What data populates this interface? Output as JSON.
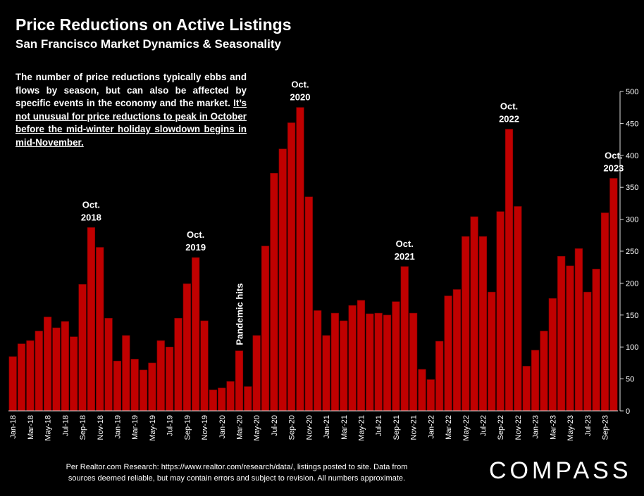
{
  "header": {
    "title": "Price Reductions on Active Listings",
    "subtitle": "San Francisco Market Dynamics & Seasonality"
  },
  "description": {
    "normal": "The number of price reductions typically ebbs and flows by season, but can also be affected by specific events in the economy and the market.",
    "underlined": "It’s not unusual for price reductions to peak in October before the mid-winter holiday slowdown begins in mid-November."
  },
  "footer": {
    "line1": "Per Realtor.com Research:  https://www.realtor.com/research/data/, listings posted to site. Data from",
    "line2": "sources deemed reliable, but may contain errors and subject to revision. All numbers approximate."
  },
  "brand": {
    "name": "COMPASS"
  },
  "chart_data": {
    "type": "bar",
    "bar_color": "#c00000",
    "ylim": [
      0,
      500
    ],
    "yticks": [
      0,
      50,
      100,
      150,
      200,
      250,
      300,
      350,
      400,
      450,
      500
    ],
    "categories": [
      "Jan-18",
      "Feb-18",
      "Mar-18",
      "Apr-18",
      "May-18",
      "Jun-18",
      "Jul-18",
      "Aug-18",
      "Sep-18",
      "Oct-18",
      "Nov-18",
      "Dec-18",
      "Jan-19",
      "Feb-19",
      "Mar-19",
      "Apr-19",
      "May-19",
      "Jun-19",
      "Jul-19",
      "Aug-19",
      "Sep-19",
      "Oct-19",
      "Nov-19",
      "Dec-19",
      "Jan-20",
      "Feb-20",
      "Mar-20",
      "Apr-20",
      "May-20",
      "Jun-20",
      "Jul-20",
      "Aug-20",
      "Sep-20",
      "Oct-20",
      "Nov-20",
      "Dec-20",
      "Jan-21",
      "Feb-21",
      "Mar-21",
      "Apr-21",
      "May-21",
      "Jun-21",
      "Jul-21",
      "Aug-21",
      "Sep-21",
      "Oct-21",
      "Nov-21",
      "Dec-21",
      "Jan-22",
      "Feb-22",
      "Mar-22",
      "Apr-22",
      "May-22",
      "Jun-22",
      "Jul-22",
      "Aug-22",
      "Sep-22",
      "Oct-22",
      "Nov-22",
      "Dec-22",
      "Jan-23",
      "Feb-23",
      "Mar-23",
      "Apr-23",
      "May-23",
      "Jun-23",
      "Jul-23",
      "Aug-23",
      "Sep-23",
      "Oct-23"
    ],
    "xtick_labels": [
      "Jan-18",
      "Mar-18",
      "May-18",
      "Jul-18",
      "Sep-18",
      "Nov-18",
      "Jan-19",
      "Mar-19",
      "May-19",
      "Jul-19",
      "Sep-19",
      "Nov-19",
      "Jan-20",
      "Mar-20",
      "May-20",
      "Jul-20",
      "Sep-20",
      "Nov-20",
      "Jan-21",
      "Mar-21",
      "May-21",
      "Jul-21",
      "Sep-21",
      "Nov-21",
      "Jan-22",
      "Mar-22",
      "May-22",
      "Jul-22",
      "Sep-22",
      "Nov-22",
      "Jan-23",
      "Mar-23",
      "May-23",
      "Jul-23",
      "Sep-23"
    ],
    "values": [
      85,
      105,
      110,
      125,
      147,
      130,
      140,
      116,
      198,
      287,
      256,
      145,
      78,
      118,
      81,
      64,
      75,
      110,
      100,
      145,
      199,
      240,
      141,
      33,
      36,
      46,
      94,
      38,
      118,
      258,
      372,
      410,
      451,
      475,
      335,
      157,
      118,
      153,
      141,
      165,
      173,
      152,
      153,
      150,
      171,
      226,
      153,
      65,
      49,
      109,
      180,
      190,
      273,
      304,
      273,
      186,
      312,
      441,
      320,
      70,
      95,
      125,
      176,
      242,
      227,
      254,
      186,
      222,
      310,
      364
    ],
    "annotations": [
      {
        "category": "Oct-18",
        "lines": [
          "Oct.",
          "2018"
        ]
      },
      {
        "category": "Oct-19",
        "lines": [
          "Oct.",
          "2019"
        ]
      },
      {
        "category": "Oct-20",
        "lines": [
          "Oct.",
          "2020"
        ]
      },
      {
        "category": "Oct-21",
        "lines": [
          "Oct.",
          "2021"
        ]
      },
      {
        "category": "Oct-22",
        "lines": [
          "Oct.",
          "2022"
        ]
      },
      {
        "category": "Oct-23",
        "lines": [
          "Oct.",
          "2023"
        ]
      },
      {
        "category": "Mar-20",
        "lines": [
          "Pandemic hits"
        ],
        "rotated": true
      }
    ]
  }
}
